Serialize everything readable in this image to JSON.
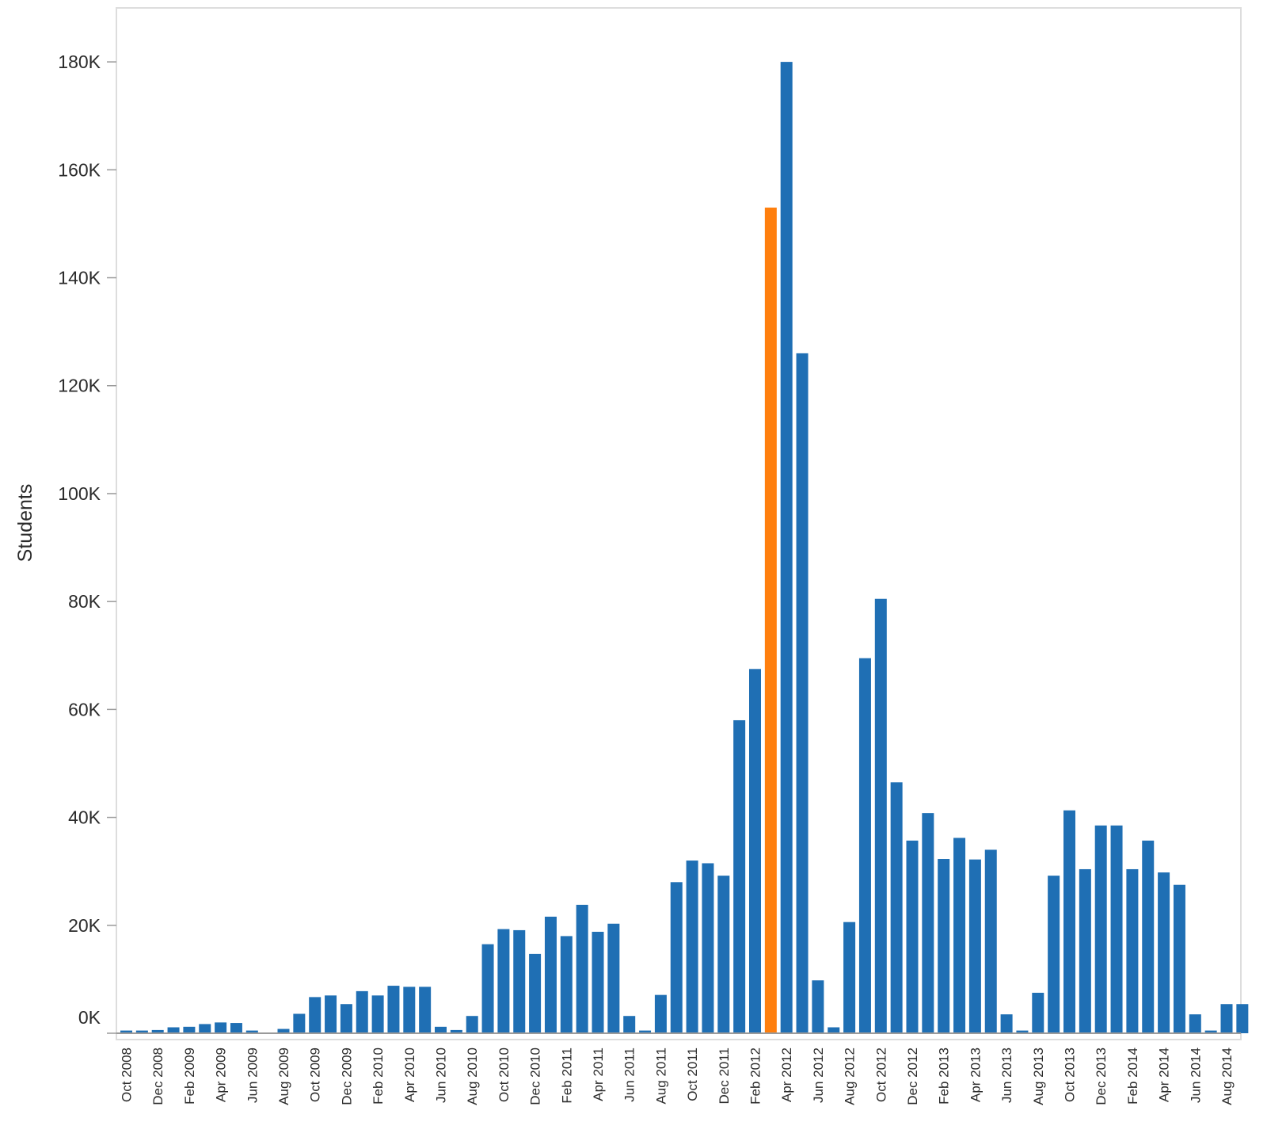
{
  "colors": {
    "bar": "#1f6fb4",
    "highlight": "#ff7f0e",
    "frame": "#dddddd",
    "axis": "#9a9a9a"
  },
  "chart_data": {
    "type": "bar",
    "ylabel": "Students",
    "xlabel": "",
    "ylim": [
      0,
      190000
    ],
    "yticks": [
      0,
      20000,
      40000,
      60000,
      80000,
      100000,
      120000,
      140000,
      160000,
      180000
    ],
    "ytick_labels": [
      "0K",
      "20K",
      "40K",
      "60K",
      "80K",
      "100K",
      "120K",
      "140K",
      "160K",
      "180K"
    ],
    "grid": false,
    "categories": [
      "Oct 2008",
      "Nov 2008",
      "Dec 2008",
      "Jan 2009",
      "Feb 2009",
      "Mar 2009",
      "Apr 2009",
      "May 2009",
      "Jun 2009",
      "Jul 2009",
      "Aug 2009",
      "Sep 2009",
      "Oct 2009",
      "Nov 2009",
      "Dec 2009",
      "Jan 2010",
      "Feb 2010",
      "Mar 2010",
      "Apr 2010",
      "May 2010",
      "Jun 2010",
      "Jul 2010",
      "Aug 2010",
      "Sep 2010",
      "Oct 2010",
      "Nov 2010",
      "Dec 2010",
      "Jan 2011",
      "Feb 2011",
      "Mar 2011",
      "Apr 2011",
      "May 2011",
      "Jun 2011",
      "Jul 2011",
      "Aug 2011",
      "Sep 2011",
      "Oct 2011",
      "Nov 2011",
      "Dec 2011",
      "Jan 2012",
      "Feb 2012",
      "Mar 2012",
      "Apr 2012",
      "May 2012",
      "Jun 2012",
      "Jul 2012",
      "Aug 2012",
      "Sep 2012",
      "Oct 2012",
      "Nov 2012",
      "Dec 2012",
      "Jan 2013",
      "Feb 2013",
      "Mar 2013",
      "Apr 2013",
      "May 2013",
      "Jun 2013",
      "Jul 2013",
      "Aug 2013",
      "Sep 2013",
      "Oct 2013",
      "Nov 2013",
      "Dec 2013",
      "Jan 2014",
      "Feb 2014",
      "Mar 2014",
      "Apr 2014",
      "May 2014",
      "Jun 2014",
      "Jul 2014",
      "Aug 2014",
      "Sep 2014"
    ],
    "x_tick_labels": [
      "Oct 2008",
      "Dec 2008",
      "Feb 2009",
      "Apr 2009",
      "Jun 2009",
      "Aug 2009",
      "Oct 2009",
      "Dec 2009",
      "Feb 2010",
      "Apr 2010",
      "Jun 2010",
      "Aug 2010",
      "Oct 2010",
      "Dec 2010",
      "Feb 2011",
      "Apr 2011",
      "Jun 2011",
      "Aug 2011",
      "Oct 2011",
      "Dec 2011",
      "Feb 2012",
      "Apr 2012",
      "Jun 2012",
      "Aug 2012",
      "Oct 2012",
      "Dec 2012",
      "Feb 2013",
      "Apr 2013",
      "Jun 2013",
      "Aug 2013",
      "Oct 2013",
      "Dec 2013",
      "Feb 2014",
      "Apr 2014",
      "Jun 2014",
      "Aug 2014"
    ],
    "values": [
      500,
      500,
      600,
      1100,
      1200,
      1700,
      2000,
      1900,
      500,
      0,
      800,
      3600,
      6700,
      7000,
      5400,
      7800,
      7000,
      8800,
      8600,
      8600,
      1200,
      600,
      3200,
      16500,
      19300,
      19100,
      14700,
      21600,
      18000,
      23800,
      18800,
      20300,
      3200,
      500,
      7100,
      28000,
      32000,
      31500,
      29200,
      58000,
      67500,
      153000,
      180000,
      126000,
      9800,
      1100,
      20600,
      69500,
      80500,
      46500,
      35700,
      40800,
      32300,
      36200,
      32200,
      34000,
      3500,
      500,
      7500,
      29200,
      41300,
      30400,
      38500,
      38500,
      30400,
      35700,
      29800,
      27500,
      3500,
      500,
      5400,
      5400
    ],
    "highlight_category": "Mar 2012"
  }
}
